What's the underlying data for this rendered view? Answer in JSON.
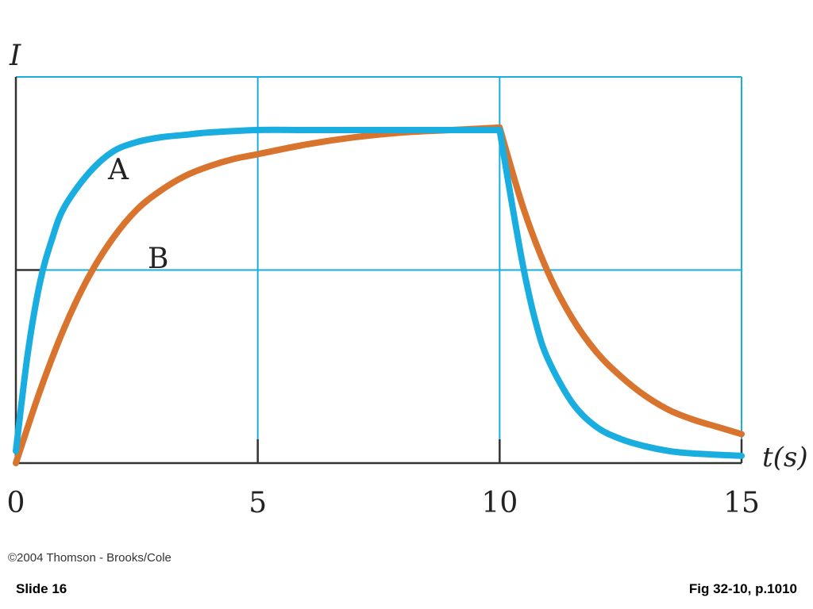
{
  "chart_data": {
    "type": "line",
    "ylabel": "I",
    "xlabel": "t(s)",
    "xlim": [
      0,
      15
    ],
    "ylim": [
      0,
      1.6
    ],
    "x_ticks": [
      0,
      5,
      10,
      15
    ],
    "x_tick_labels": [
      "0",
      "5",
      "10",
      "15"
    ],
    "grid": true,
    "series": [
      {
        "name": "A",
        "color": "#1aaee0",
        "x": [
          0,
          0.25,
          0.5,
          0.75,
          1,
          1.5,
          2,
          2.5,
          3,
          3.5,
          4,
          5,
          6,
          7,
          8,
          9,
          10,
          10.25,
          10.5,
          10.75,
          11,
          11.5,
          12,
          12.5,
          13,
          13.5,
          14,
          15
        ],
        "y": [
          0.05,
          0.46,
          0.75,
          0.93,
          1.06,
          1.2,
          1.29,
          1.33,
          1.35,
          1.36,
          1.37,
          1.38,
          1.38,
          1.38,
          1.38,
          1.38,
          1.38,
          1.08,
          0.8,
          0.58,
          0.43,
          0.25,
          0.15,
          0.1,
          0.07,
          0.05,
          0.04,
          0.03
        ]
      },
      {
        "name": "B",
        "color": "#d9742e",
        "x": [
          0,
          0.5,
          1,
          1.5,
          2,
          2.5,
          3,
          3.5,
          4,
          4.5,
          5,
          6,
          7,
          8,
          9,
          10,
          10.5,
          11,
          11.5,
          12,
          12.5,
          13,
          13.5,
          14,
          14.5,
          15
        ],
        "y": [
          0.0,
          0.3,
          0.56,
          0.77,
          0.93,
          1.05,
          1.13,
          1.19,
          1.23,
          1.26,
          1.28,
          1.32,
          1.35,
          1.37,
          1.38,
          1.39,
          1.05,
          0.79,
          0.6,
          0.46,
          0.36,
          0.28,
          0.22,
          0.18,
          0.15,
          0.12
        ]
      }
    ]
  },
  "copyright": "©2004 Thomson - Brooks/Cole",
  "footer": {
    "slide_number": "Slide 16",
    "figure_reference": "Fig 32-10, p.1010"
  }
}
